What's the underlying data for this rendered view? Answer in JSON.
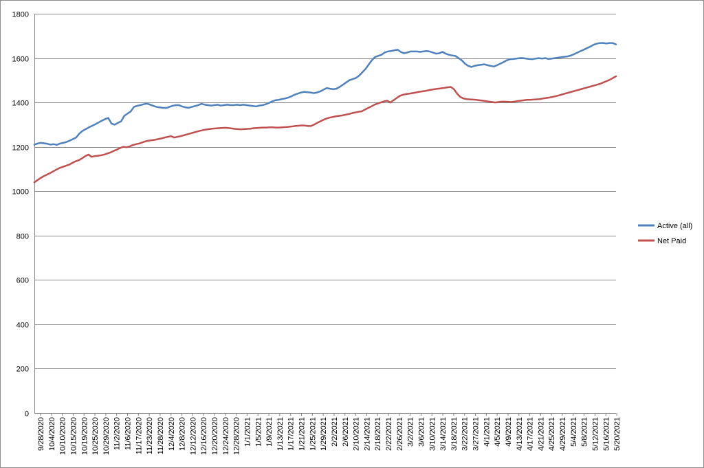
{
  "chart_data": {
    "type": "line",
    "title": "",
    "xlabel": "",
    "ylabel": "",
    "ylim": [
      0,
      1800
    ],
    "yticks": [
      0,
      200,
      400,
      600,
      800,
      1000,
      1200,
      1400,
      1600,
      1800
    ],
    "grid": "horizontal",
    "legend_position": "right",
    "xtick_labels": [
      "9/28/2020",
      "10/4/2020",
      "10/10/2020",
      "10/15/2020",
      "10/19/2020",
      "10/25/2020",
      "10/29/2020",
      "11/2/2020",
      "11/6/2020",
      "11/17/2020",
      "11/23/2020",
      "11/28/2020",
      "12/4/2020",
      "12/8/2020",
      "12/12/2020",
      "12/16/2020",
      "12/20/2020",
      "12/24/2020",
      "12/28/2020",
      "1/1/2021",
      "1/5/2021",
      "1/9/2021",
      "1/13/2021",
      "1/17/2021",
      "1/21/2021",
      "1/25/2021",
      "1/29/2021",
      "2/2/2021",
      "2/6/2021",
      "2/10/2021",
      "2/14/2021",
      "2/18/2021",
      "2/22/2021",
      "2/26/2021",
      "3/2/2021",
      "3/6/2021",
      "3/10/2021",
      "3/14/2021",
      "3/18/2021",
      "3/22/2021",
      "3/27/2021",
      "4/1/2021",
      "4/5/2021",
      "4/9/2021",
      "4/13/2021",
      "4/17/2021",
      "4/21/2021",
      "4/25/2021",
      "4/29/2021",
      "5/4/2021",
      "5/8/2021",
      "5/12/2021",
      "5/16/2021",
      "5/20/2021"
    ],
    "series": [
      {
        "name": "Active (all)",
        "color": "#4f81bd",
        "values": [
          1210,
          1215,
          1218,
          1216,
          1214,
          1210,
          1212,
          1209,
          1215,
          1218,
          1222,
          1228,
          1235,
          1242,
          1260,
          1272,
          1280,
          1288,
          1295,
          1302,
          1310,
          1318,
          1325,
          1330,
          1305,
          1300,
          1308,
          1315,
          1340,
          1350,
          1360,
          1380,
          1385,
          1388,
          1392,
          1395,
          1390,
          1385,
          1380,
          1378,
          1376,
          1375,
          1380,
          1385,
          1388,
          1388,
          1382,
          1378,
          1376,
          1380,
          1384,
          1388,
          1394,
          1390,
          1388,
          1386,
          1388,
          1390,
          1386,
          1388,
          1390,
          1388,
          1388,
          1390,
          1388,
          1390,
          1388,
          1386,
          1384,
          1382,
          1386,
          1388,
          1392,
          1398,
          1405,
          1410,
          1412,
          1415,
          1418,
          1422,
          1428,
          1435,
          1440,
          1445,
          1448,
          1446,
          1445,
          1442,
          1445,
          1450,
          1458,
          1465,
          1462,
          1460,
          1462,
          1470,
          1480,
          1490,
          1500,
          1505,
          1510,
          1520,
          1535,
          1550,
          1570,
          1590,
          1605,
          1610,
          1615,
          1625,
          1630,
          1632,
          1635,
          1638,
          1628,
          1622,
          1625,
          1630,
          1630,
          1630,
          1628,
          1630,
          1632,
          1630,
          1625,
          1620,
          1622,
          1628,
          1620,
          1615,
          1612,
          1610,
          1600,
          1590,
          1575,
          1565,
          1560,
          1565,
          1568,
          1570,
          1572,
          1568,
          1565,
          1562,
          1568,
          1575,
          1582,
          1590,
          1595,
          1596,
          1598,
          1600,
          1600,
          1598,
          1596,
          1595,
          1598,
          1600,
          1598,
          1600,
          1596,
          1598,
          1600,
          1602,
          1604,
          1606,
          1608,
          1612,
          1618,
          1625,
          1632,
          1638,
          1645,
          1652,
          1660,
          1665,
          1668,
          1668,
          1666,
          1668,
          1668,
          1662
        ]
      },
      {
        "name": "Net Paid",
        "color": "#c0504d",
        "values": [
          1040,
          1050,
          1060,
          1068,
          1075,
          1082,
          1090,
          1098,
          1105,
          1110,
          1115,
          1120,
          1128,
          1135,
          1140,
          1148,
          1158,
          1165,
          1155,
          1158,
          1160,
          1162,
          1165,
          1170,
          1175,
          1182,
          1188,
          1195,
          1200,
          1198,
          1202,
          1208,
          1212,
          1215,
          1220,
          1225,
          1228,
          1230,
          1232,
          1235,
          1238,
          1242,
          1245,
          1248,
          1242,
          1245,
          1248,
          1252,
          1256,
          1260,
          1264,
          1268,
          1272,
          1275,
          1278,
          1280,
          1282,
          1283,
          1284,
          1285,
          1286,
          1285,
          1283,
          1281,
          1280,
          1279,
          1280,
          1281,
          1282,
          1284,
          1285,
          1286,
          1287,
          1287,
          1288,
          1288,
          1287,
          1287,
          1288,
          1289,
          1290,
          1292,
          1294,
          1295,
          1296,
          1296,
          1294,
          1294,
          1300,
          1308,
          1315,
          1322,
          1328,
          1332,
          1335,
          1338,
          1340,
          1342,
          1345,
          1348,
          1352,
          1355,
          1358,
          1360,
          1368,
          1375,
          1382,
          1390,
          1395,
          1400,
          1405,
          1408,
          1400,
          1410,
          1420,
          1430,
          1435,
          1438,
          1440,
          1442,
          1445,
          1448,
          1450,
          1452,
          1455,
          1458,
          1460,
          1462,
          1464,
          1466,
          1468,
          1470,
          1460,
          1440,
          1425,
          1418,
          1415,
          1414,
          1413,
          1412,
          1410,
          1408,
          1406,
          1404,
          1402,
          1400,
          1402,
          1404,
          1404,
          1403,
          1402,
          1404,
          1406,
          1408,
          1410,
          1412,
          1412,
          1413,
          1414,
          1415,
          1418,
          1420,
          1422,
          1425,
          1428,
          1432,
          1436,
          1440,
          1444,
          1448,
          1452,
          1456,
          1460,
          1464,
          1468,
          1472,
          1476,
          1480,
          1484,
          1490,
          1496,
          1502,
          1510,
          1518
        ]
      }
    ]
  }
}
